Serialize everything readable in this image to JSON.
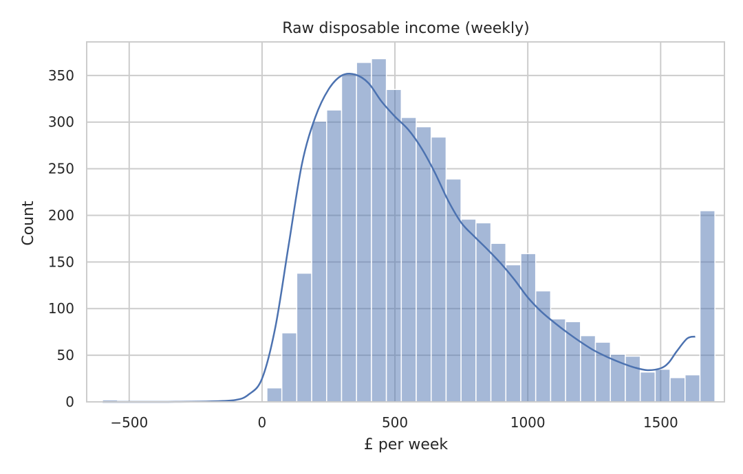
{
  "chart_data": {
    "type": "bar",
    "title": "Raw disposable income (weekly)",
    "xlabel": "£ per week",
    "ylabel": "Count",
    "xlim": [
      -660,
      1740
    ],
    "ylim": [
      0,
      386
    ],
    "grid": true,
    "xticks": [
      -500,
      0,
      500,
      1000,
      1500
    ],
    "xtick_labels": [
      "−500",
      "0",
      "500",
      "1000",
      "1500"
    ],
    "yticks": [
      0,
      50,
      100,
      150,
      200,
      250,
      300,
      350
    ],
    "bins": {
      "start": -600,
      "width": 56.2,
      "counts": [
        2,
        0,
        0,
        0,
        0,
        0,
        0,
        0,
        0,
        0,
        0,
        15,
        74,
        138,
        301,
        313,
        352,
        364,
        368,
        335,
        305,
        295,
        284,
        239,
        196,
        192,
        170,
        147,
        159,
        119,
        89,
        86,
        71,
        64,
        51,
        49,
        32,
        35,
        26,
        29,
        205
      ]
    },
    "kde": {
      "name": "",
      "x": [
        -600,
        -400,
        -200,
        -100,
        -50,
        0,
        50,
        100,
        150,
        200,
        250,
        300,
        350,
        400,
        450,
        500,
        550,
        600,
        650,
        700,
        750,
        800,
        850,
        900,
        950,
        1000,
        1050,
        1100,
        1150,
        1200,
        1250,
        1300,
        1350,
        1400,
        1450,
        1500,
        1530,
        1560,
        1600,
        1630
      ],
      "y": [
        0,
        0,
        0.5,
        2,
        8,
        25,
        80,
        168,
        255,
        305,
        335,
        350,
        351,
        342,
        322,
        306,
        292,
        272,
        246,
        216,
        192,
        177,
        163,
        148,
        131,
        112,
        97,
        85,
        74,
        64,
        55,
        48,
        42,
        37,
        34,
        36,
        42,
        54,
        68,
        70
      ]
    },
    "colors": {
      "bar_fill": "#4c72b0",
      "bar_opacity": 0.5,
      "line": "#4c72b0",
      "grid": "#cccccc",
      "frame": "#cccccc"
    }
  }
}
